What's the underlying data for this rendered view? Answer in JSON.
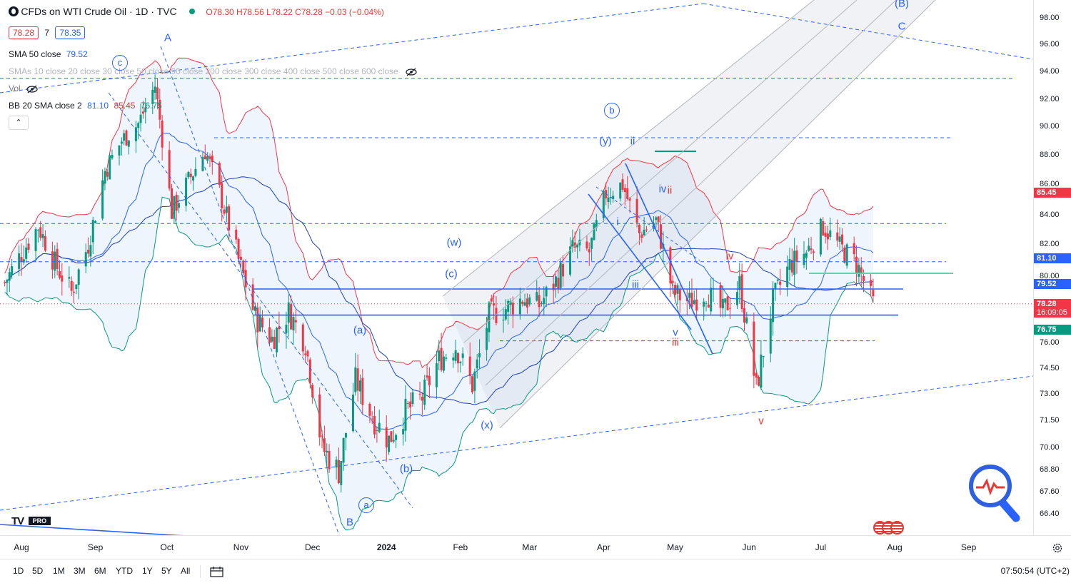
{
  "header": {
    "symbol_title": "CFDs on WTI Crude Oil · 1D · TVC",
    "ohlc": "O78.30 H78.56 L78.22 C78.28 −0.03 (−0.04%)",
    "bid": "78.28",
    "spread": "7",
    "ask": "78.35"
  },
  "legend": {
    "sma50_label": "SMA 50 close",
    "sma50_value": "79.52",
    "smas_label": "SMAs 10 close 20 close 30 close 50 close 90 close 200 close 300 close 400 close 500 close 600 close",
    "vol_label": "Vol",
    "bb_label": "BB 20 SMA close 2",
    "bb_mid": "81.10",
    "bb_up": "85.45",
    "bb_low": "76.75",
    "collapse_icon": "chevron-up-icon"
  },
  "colors": {
    "up": "#089981",
    "down": "#f23645",
    "accent": "#2962ff",
    "bb_upper": "#f23645",
    "bb_lower": "#089981",
    "bb_basis": "#2962ff",
    "bb_fill": "#e3effb"
  },
  "price_axis": {
    "ticks": [
      "98.00",
      "96.00",
      "94.00",
      "92.00",
      "90.00",
      "88.00",
      "86.00",
      "84.00",
      "82.00",
      "80.00",
      "78.00",
      "76.00",
      "74.50",
      "73.00",
      "71.50",
      "70.00",
      "68.80",
      "67.60",
      "66.40"
    ],
    "labels": [
      {
        "text": "85.45",
        "color": "#f23645"
      },
      {
        "text": "81.10",
        "color": "#2962ff"
      },
      {
        "text": "79.52",
        "color": "#2962ff"
      },
      {
        "text": "78.28",
        "sub": "16:09:05",
        "color": "#f23645"
      },
      {
        "text": "76.75",
        "color": "#089981"
      }
    ]
  },
  "time_axis": {
    "ticks": [
      "Aug",
      "Sep",
      "Oct",
      "Nov",
      "Dec",
      "2024",
      "Feb",
      "Mar",
      "Apr",
      "May",
      "Jun",
      "Jul",
      "Aug",
      "Sep"
    ]
  },
  "wave_labels": {
    "A": "A",
    "B": "B",
    "C": "C",
    "paren_B": "(B)",
    "c_circ": "c",
    "b_circ": "b",
    "a_circ": "a",
    "w": "(w)",
    "c_paren": "(c)",
    "a_paren": "(a)",
    "b_paren": "(b)",
    "x_paren": "(x)",
    "y_paren": "(y)",
    "ii": "ii",
    "iv": "iv",
    "ii_red": "ii",
    "i": "i",
    "iii": "iii",
    "v": "v",
    "iii_red": "iii",
    "iv_red": "iv",
    "v_red": "v"
  },
  "bottom_bar": {
    "ranges": [
      "1D",
      "5D",
      "1M",
      "3M",
      "6M",
      "YTD",
      "1Y",
      "5Y",
      "All"
    ],
    "compare_icon": "calendar-range-icon",
    "clock": "07:50:54 (UTC+2)"
  },
  "branding": {
    "logo": "TV",
    "pro": "PRO"
  },
  "chart_data": {
    "type": "candlestick",
    "title": "CFDs on WTI Crude Oil · 1D · TVC",
    "xlabel": "",
    "ylabel": "",
    "ylim": [
      65.5,
      98.5
    ],
    "x_range": [
      "2023-07-25",
      "2024-09-10"
    ],
    "last_price": 78.28,
    "series": [
      {
        "name": "WTI close",
        "values": [
          [
            "2023-07-25",
            79.6
          ],
          [
            "2023-08-01",
            81.4
          ],
          [
            "2023-08-08",
            83.2
          ],
          [
            "2023-08-15",
            80.8
          ],
          [
            "2023-08-22",
            79.0
          ],
          [
            "2023-08-29",
            82.0
          ],
          [
            "2023-09-05",
            86.9
          ],
          [
            "2023-09-12",
            89.0
          ],
          [
            "2023-09-19",
            90.2
          ],
          [
            "2023-09-26",
            93.0
          ],
          [
            "2023-10-03",
            84.2
          ],
          [
            "2023-10-10",
            86.2
          ],
          [
            "2023-10-17",
            88.3
          ],
          [
            "2023-10-24",
            85.0
          ],
          [
            "2023-10-31",
            81.0
          ],
          [
            "2023-11-07",
            77.5
          ],
          [
            "2023-11-14",
            76.2
          ],
          [
            "2023-11-21",
            77.8
          ],
          [
            "2023-11-28",
            76.0
          ],
          [
            "2023-12-05",
            70.0
          ],
          [
            "2023-12-12",
            68.7
          ],
          [
            "2023-12-19",
            73.8
          ],
          [
            "2023-12-26",
            71.7
          ],
          [
            "2024-01-02",
            70.4
          ],
          [
            "2024-01-09",
            72.0
          ],
          [
            "2024-01-16",
            72.8
          ],
          [
            "2024-01-23",
            75.0
          ],
          [
            "2024-01-30",
            75.8
          ],
          [
            "2024-02-06",
            73.5
          ],
          [
            "2024-02-13",
            77.6
          ],
          [
            "2024-02-20",
            78.0
          ],
          [
            "2024-02-27",
            78.6
          ],
          [
            "2024-03-05",
            78.2
          ],
          [
            "2024-03-12",
            79.7
          ],
          [
            "2024-03-19",
            81.7
          ],
          [
            "2024-03-26",
            81.5
          ],
          [
            "2024-04-02",
            85.4
          ],
          [
            "2024-04-09",
            86.0
          ],
          [
            "2024-04-16",
            82.7
          ],
          [
            "2024-04-23",
            83.6
          ],
          [
            "2024-04-30",
            79.0
          ],
          [
            "2024-05-07",
            78.4
          ],
          [
            "2024-05-14",
            79.0
          ],
          [
            "2024-05-21",
            77.8
          ],
          [
            "2024-05-28",
            79.5
          ],
          [
            "2024-06-04",
            73.3
          ],
          [
            "2024-06-11",
            78.5
          ],
          [
            "2024-06-18",
            80.7
          ],
          [
            "2024-06-25",
            81.5
          ],
          [
            "2024-07-02",
            83.2
          ],
          [
            "2024-07-09",
            81.8
          ],
          [
            "2024-07-16",
            80.8
          ],
          [
            "2024-07-23",
            78.28
          ]
        ]
      }
    ],
    "indicators": {
      "sma50": 79.52,
      "bollinger": {
        "length": 20,
        "basis": 81.1,
        "upper": 85.45,
        "lower": 76.75
      }
    },
    "horizontal_levels": [
      93.5,
      89.2,
      83.4,
      80.9,
      79.2,
      77.6,
      76.1
    ],
    "grid": false
  }
}
